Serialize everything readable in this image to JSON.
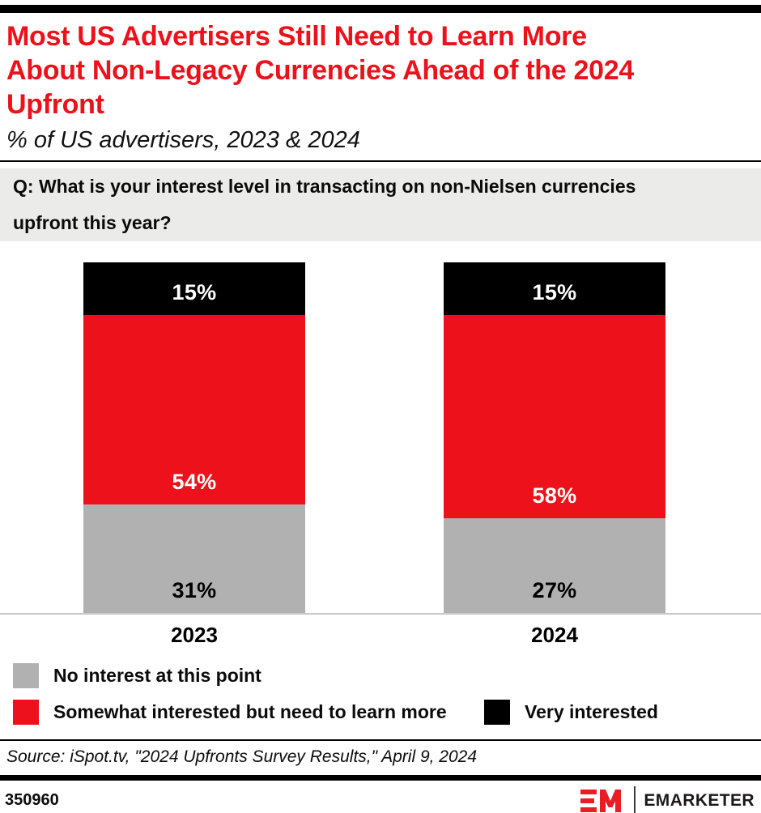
{
  "header": {
    "title": "Most US Advertisers Still Need to Learn More\nAbout Non-Legacy Currencies Ahead of the 2024\nUpfront",
    "subtitle": "% of US advertisers, 2023 & 2024",
    "title_color": "#EC111A"
  },
  "question": {
    "text": "Q: What is your interest level in transacting on non-Nielsen currencies\nupfront this year?"
  },
  "chart_data": {
    "type": "bar",
    "stacked": true,
    "orientation": "vertical",
    "categories": [
      "2023",
      "2024"
    ],
    "series": [
      {
        "name": "No interest at this point",
        "color": "#B1B1B1",
        "label_color": "#000000",
        "values": [
          31,
          27
        ]
      },
      {
        "name": "Somewhat interested but need to learn more",
        "color": "#EC111A",
        "label_color": "#FFFFFF",
        "values": [
          54,
          58
        ]
      },
      {
        "name": "Very interested",
        "color": "#000000",
        "label_color": "#FFFFFF",
        "values": [
          15,
          15
        ]
      }
    ],
    "value_suffix": "%",
    "ylim": [
      0,
      100
    ],
    "grid": false,
    "legend_position": "bottom"
  },
  "source": {
    "text": "Source: iSpot.tv, \"2024 Upfronts Survey Results,\" April 9, 2024"
  },
  "footer": {
    "chart_id": "350960",
    "brand": "EMARKETER"
  }
}
